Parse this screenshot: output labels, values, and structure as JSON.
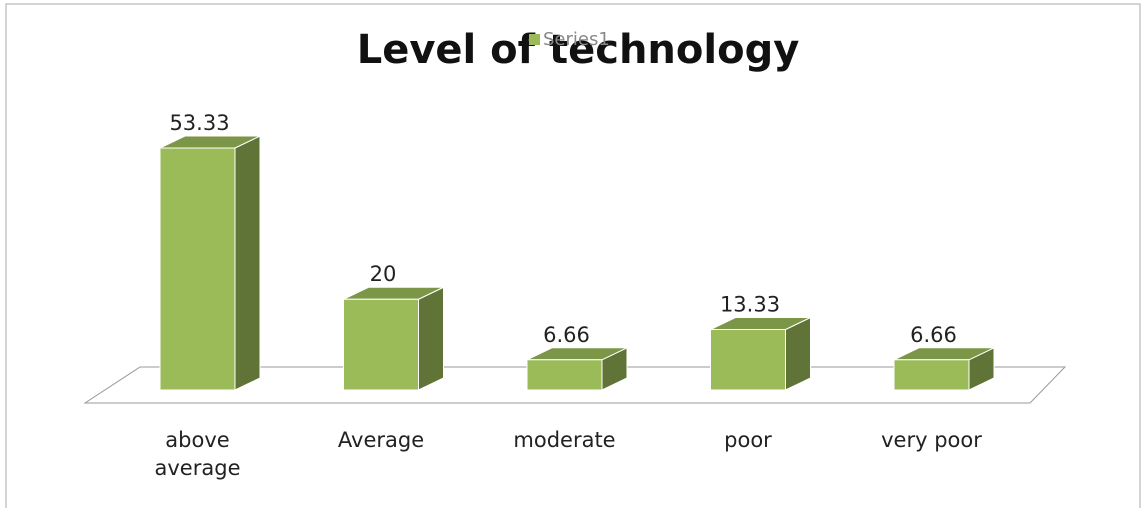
{
  "chart_data": {
    "type": "bar3d",
    "title": "Level of technology",
    "categories": [
      "above average",
      "Average",
      "moderate",
      "poor",
      "very poor"
    ],
    "series": [
      {
        "name": "Series1",
        "color": "#9bbb59",
        "values": [
          53.33,
          20,
          6.66,
          13.33,
          6.66
        ]
      }
    ]
  }
}
